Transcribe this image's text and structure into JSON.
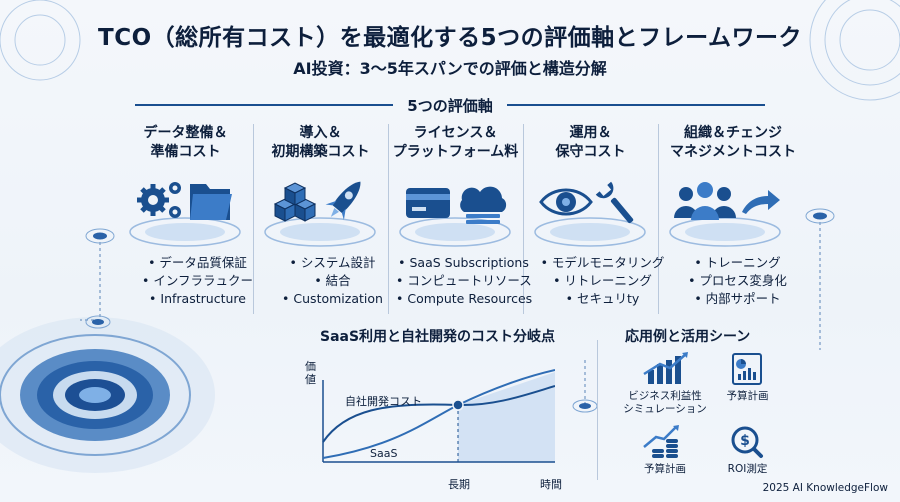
{
  "title": "TCO（総所有コスト）を最適化する5つの評価軸とフレームワーク",
  "subtitle": "AI投資：3〜5年スパンでの評価と構造分解",
  "section_title": "5つの評価軸",
  "axes": [
    {
      "title_line1": "データ整備＆",
      "title_line2": "準備コスト",
      "icon": "gears-folder-icon",
      "bullets": [
        "データ品質保証",
        "インフララュクー",
        "Infrastructure"
      ]
    },
    {
      "title_line1": "導入＆",
      "title_line2": "初期構築コスト",
      "icon": "cubes-rocket-icon",
      "bullets": [
        "システム設計",
        "結合",
        "Customization"
      ]
    },
    {
      "title_line1": "ライセンス＆",
      "title_line2": "プラットフォーム料",
      "icon": "card-cloud-icon",
      "bullets": [
        "SaaS Subscriptions",
        "コンピュートリソース",
        "Compute Resources"
      ]
    },
    {
      "title_line1": "運用＆",
      "title_line2": "保守コスト",
      "icon": "eye-wrench-icon",
      "bullets": [
        "モデルモニタリング",
        "リトレーニング",
        "セキュリty"
      ]
    },
    {
      "title_line1": "組織＆チェンジ",
      "title_line2": "マネジメントコスト",
      "icon": "people-arrow-icon",
      "bullets": [
        "トレーニング",
        "プロセス変身化",
        "内部サポート"
      ]
    }
  ],
  "chart_title": "SaaS利用と自社開発のコスト分岐点",
  "chart_data": {
    "type": "line",
    "title": "SaaS利用と自社開発のコスト分岐点",
    "ylabel_line1": "価",
    "ylabel_line2": "値",
    "xlabel": "時間",
    "x_marker_label": "長期",
    "series": [
      {
        "name": "自社開発コスト",
        "shape": "concave",
        "color": "#1a4f8f"
      },
      {
        "name": "SaaS",
        "shape": "convex",
        "color": "#1a4f8f"
      }
    ],
    "crossover": true,
    "grid": false
  },
  "use_cases_title": "応用例と活用シーン",
  "use_cases": [
    {
      "label_line1": "ビジネス利益性",
      "label_line2": "シミュレーション",
      "icon": "bar-growth-icon"
    },
    {
      "label_line1": "予算計画",
      "label_line2": "",
      "icon": "report-chart-icon"
    },
    {
      "label_line1": "予算計画",
      "label_line2": "",
      "icon": "coins-growth-icon"
    },
    {
      "label_line1": "ROI測定",
      "label_line2": "",
      "icon": "dollar-search-icon"
    }
  ],
  "footer": "2025 AI KnowledgeFlow",
  "colors": {
    "primary": "#1a4f8f",
    "accent": "#2f7fd3",
    "light": "#cfe0f3",
    "text": "#0d1f3c"
  }
}
